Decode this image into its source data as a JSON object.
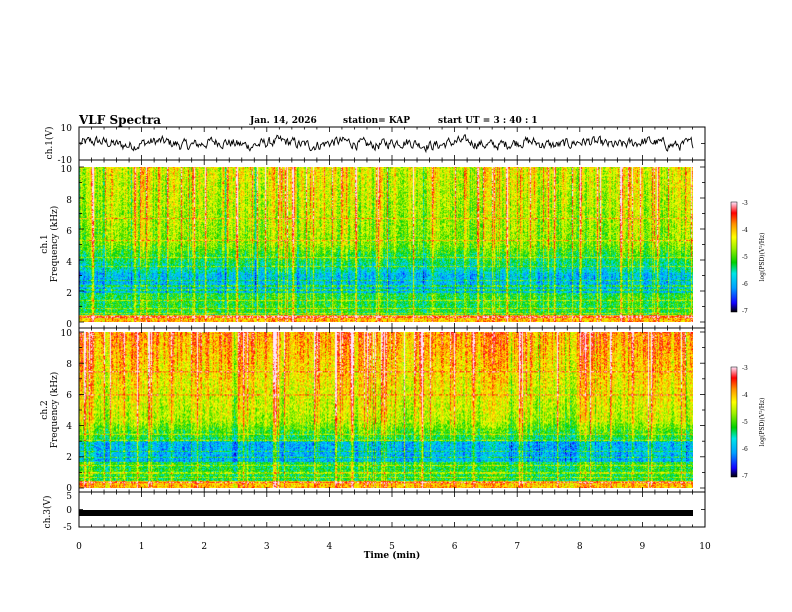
{
  "header": {
    "title": "VLF Spectra",
    "date": "Jan. 14, 2026",
    "station": "station= KAP",
    "start": "start UT =  3 : 40 : 1"
  },
  "chart_data": [
    {
      "id": "ch1_waveform",
      "type": "line",
      "ylabel": "ch.1(V)",
      "ylim": [
        -10,
        10
      ],
      "yticks": [
        "10",
        "-10"
      ],
      "xlim": [
        0,
        10
      ],
      "series": [
        {
          "name": "ch.1 voltage",
          "note": "noisy waveform oscillating roughly between -4 and 4 V over 0–9.8 min"
        }
      ]
    },
    {
      "id": "ch1_spectrogram",
      "type": "heatmap",
      "ylabel_top": "ch.1",
      "ylabel": "Frequency (kHz)",
      "ylim": [
        0,
        10
      ],
      "yticks": [
        "0",
        "2",
        "4",
        "6",
        "8",
        "10"
      ],
      "xlim": [
        0,
        10
      ],
      "colorbar": {
        "label": "log(PSD)(V²/Hz)",
        "range": [
          -7,
          -3
        ],
        "ticks": [
          "-3",
          "-4",
          "-5",
          "-6",
          "-7"
        ]
      }
    },
    {
      "id": "ch2_spectrogram",
      "type": "heatmap",
      "ylabel_top": "ch.2",
      "ylabel": "Frequency (kHz)",
      "ylim": [
        0,
        10
      ],
      "yticks": [
        "0",
        "2",
        "4",
        "6",
        "8",
        "10"
      ],
      "xlim": [
        0,
        10
      ],
      "colorbar": {
        "label": "log(PSD)(V²/Hz)",
        "range": [
          -7,
          -3
        ],
        "ticks": [
          "-3",
          "-4",
          "-5",
          "-6",
          "-7"
        ]
      }
    },
    {
      "id": "ch3_waveform",
      "type": "line",
      "ylabel": "ch.3(V)",
      "ylim": [
        -5,
        5
      ],
      "yticks": [
        "5",
        "0",
        "-5"
      ],
      "xlim": [
        0,
        10
      ],
      "series": [
        {
          "name": "ch.3 voltage",
          "note": "thick flat band near -1 V from 0 to 9.8 min"
        }
      ]
    }
  ],
  "xaxis": {
    "label": "Time (min)",
    "ticks": [
      "0",
      "1",
      "2",
      "3",
      "4",
      "5",
      "6",
      "7",
      "8",
      "9",
      "10"
    ]
  },
  "colors": {
    "ink": "#000000",
    "background": "#ffffff"
  }
}
